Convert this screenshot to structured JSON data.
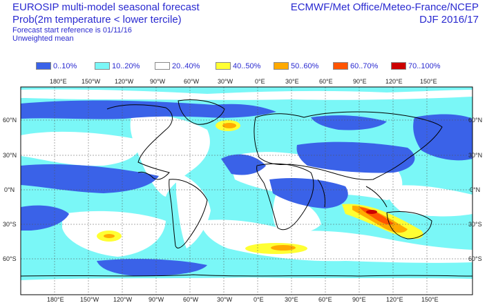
{
  "header": {
    "title_line1": "EUROSIP multi-model seasonal forecast",
    "title_line2": "Prob(2m temperature < lower tercile)",
    "forecast_ref": "Forecast start reference is 01/11/16",
    "mean_type": "Unweighted mean",
    "centres": "ECMWF/Met Office/Meteo-France/NCEP",
    "season": "DJF 2016/17"
  },
  "legend": [
    {
      "label": "0..10%",
      "color": "#3a62e8"
    },
    {
      "label": "10..20%",
      "color": "#7af7f7"
    },
    {
      "label": "20..40%",
      "color": "#ffffff"
    },
    {
      "label": "40..50%",
      "color": "#ffff33"
    },
    {
      "label": "50..60%",
      "color": "#ffaa00"
    },
    {
      "label": "60..70%",
      "color": "#ff5500"
    },
    {
      "label": "70..100%",
      "color": "#cc0000"
    }
  ],
  "map": {
    "longitude_labels": [
      "180°E",
      "150°W",
      "120°W",
      "90°W",
      "60°W",
      "30°W",
      "0°E",
      "30°E",
      "60°E",
      "90°E",
      "120°E",
      "150°E"
    ],
    "latitude_labels": [
      "60°N",
      "30°N",
      "0°N",
      "30°S",
      "60°S"
    ]
  }
}
